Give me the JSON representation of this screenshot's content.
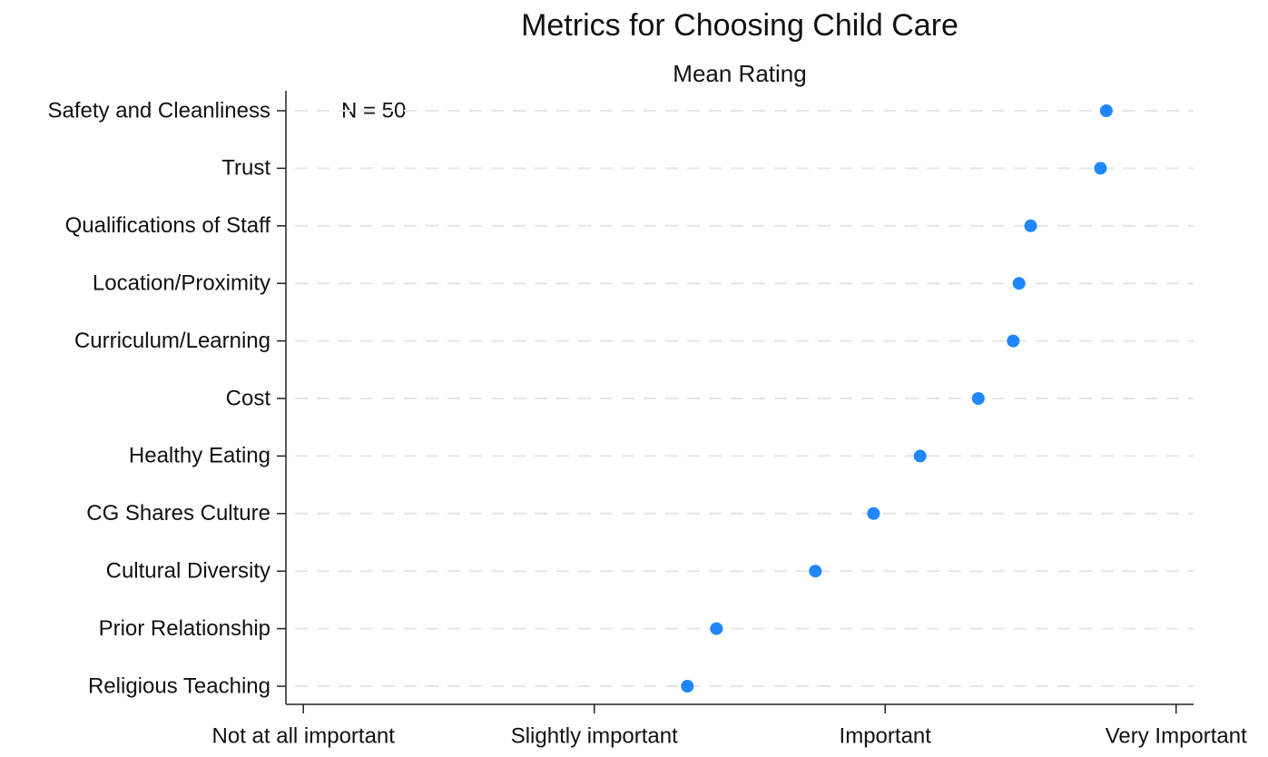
{
  "chart_data": {
    "type": "dot",
    "title": "Metrics for Choosing Child Care",
    "subtitle": "Mean Rating",
    "annotation": "N = 50",
    "categories": [
      "Safety and Cleanliness",
      "Trust",
      "Qualifications of Staff",
      "Location/Proximity",
      "Curriculum/Learning",
      "Cost",
      "Healthy Eating",
      "CG Shares Culture",
      "Cultural Diversity",
      "Prior Relationship",
      "Religious Teaching"
    ],
    "values": [
      3.76,
      3.74,
      3.5,
      3.46,
      3.44,
      3.32,
      3.12,
      2.96,
      2.76,
      2.42,
      2.32
    ],
    "color": "#1f87ff",
    "xlim": [
      0.94,
      4.06
    ],
    "xticks": [
      {
        "value": 1,
        "label": "Not at all important"
      },
      {
        "value": 2,
        "label": "Slightly important"
      },
      {
        "value": 3,
        "label": "Important"
      },
      {
        "value": 4,
        "label": "Very Important"
      }
    ],
    "grid": true
  }
}
